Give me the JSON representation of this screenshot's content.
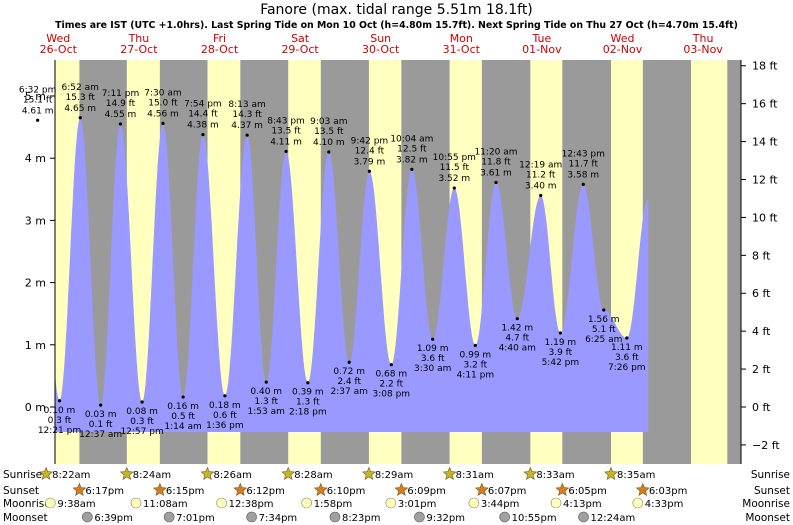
{
  "chart_data": {
    "type": "area",
    "title": "Fanore (max. tidal range 5.51m 18.1ft)",
    "subtitle": "Times are IST (UTC +1.0hrs). Last Spring Tide on Mon 10 Oct (h=4.80m 15.7ft). Next Spring Tide on Thu 27 Oct (h=4.70m 15.4ft)",
    "xlim": [
      0,
      8.3
    ],
    "ylim": [
      -0.62,
      5.76
    ],
    "y_left_ticks": [
      {
        "v": 0,
        "label": "0 m"
      },
      {
        "v": 1,
        "label": "1 m"
      },
      {
        "v": 2,
        "label": "2 m"
      },
      {
        "v": 3,
        "label": "3 m"
      },
      {
        "v": 4,
        "label": "4 m"
      },
      {
        "v": 5,
        "label": "5 m"
      }
    ],
    "y_right_ticks": [
      {
        "v": -0.6096,
        "label": "−2 ft"
      },
      {
        "v": 0,
        "label": "0 ft"
      },
      {
        "v": 0.6096,
        "label": "2 ft"
      },
      {
        "v": 1.2192,
        "label": "4 ft"
      },
      {
        "v": 1.8288,
        "label": "6 ft"
      },
      {
        "v": 2.4384,
        "label": "8 ft"
      },
      {
        "v": 3.048,
        "label": "10 ft"
      },
      {
        "v": 3.6576,
        "label": "12 ft"
      },
      {
        "v": 4.2672,
        "label": "14 ft"
      },
      {
        "v": 4.8768,
        "label": "16 ft"
      },
      {
        "v": 5.4864,
        "label": "18 ft"
      }
    ],
    "days": [
      {
        "dow": "Wed",
        "date": "26-Oct",
        "rise": 0.3486,
        "set": 0.7618
      },
      {
        "dow": "Thu",
        "date": "27-Oct",
        "rise": 1.35,
        "set": 1.7604
      },
      {
        "dow": "Fri",
        "date": "28-Oct",
        "rise": 2.3514,
        "set": 2.7583
      },
      {
        "dow": "Sat",
        "date": "29-Oct",
        "rise": 3.3528,
        "set": 3.7569
      },
      {
        "dow": "Sun",
        "date": "30-Oct",
        "rise": 4.3535,
        "set": 4.7563
      },
      {
        "dow": "Mon",
        "date": "31-Oct",
        "rise": 5.3549,
        "set": 5.7549
      },
      {
        "dow": "Tue",
        "date": "01-Nov",
        "rise": 6.3563,
        "set": 6.7535
      },
      {
        "dow": "Wed",
        "date": "02-Nov",
        "rise": 7.3576,
        "set": 7.7521
      },
      {
        "dow": "Thu",
        "date": "03-Nov",
        "rise": 8.35,
        "set": 8.8
      }
    ],
    "tides": [
      {
        "t": 0.2438,
        "h": 4.61,
        "kind": "high",
        "time": "6:32 pm",
        "ft": "15.1 ft",
        "m": "4.61 m"
      },
      {
        "t": 0.5146,
        "h": 0.1,
        "kind": "low",
        "time": "12:21 pm",
        "ft": "0.3 ft",
        "m": "0.10 m"
      },
      {
        "t": 0.7722,
        "h": 4.65,
        "kind": "high",
        "time": "6:52 am",
        "ft": "15.3 ft",
        "m": "4.65 m"
      },
      {
        "t": 1.0257,
        "h": 0.03,
        "kind": "low",
        "time": "12:37 am",
        "ft": "0.1 ft",
        "m": "0.03 m"
      },
      {
        "t": 1.2715,
        "h": 4.55,
        "kind": "high",
        "time": "7:11 pm",
        "ft": "14.9 ft",
        "m": "4.55 m"
      },
      {
        "t": 1.5396,
        "h": 0.08,
        "kind": "low",
        "time": "12:57 pm",
        "ft": "0.3 ft",
        "m": "0.08 m"
      },
      {
        "t": 1.7986,
        "h": 4.56,
        "kind": "high",
        "time": "7:30 am",
        "ft": "15.0 ft",
        "m": "4.56 m"
      },
      {
        "t": 2.0486,
        "h": 0.16,
        "kind": "low",
        "time": "1:14 am",
        "ft": "0.5 ft",
        "m": "0.16 m"
      },
      {
        "t": 2.2944,
        "h": 4.38,
        "kind": "high",
        "time": "7:54 pm",
        "ft": "14.4 ft",
        "m": "4.38 m"
      },
      {
        "t": 2.5667,
        "h": 0.18,
        "kind": "low",
        "time": "1:36 pm",
        "ft": "0.6 ft",
        "m": "0.18 m"
      },
      {
        "t": 2.8424,
        "h": 4.37,
        "kind": "high",
        "time": "8:13 am",
        "ft": "14.3 ft",
        "m": "4.37 m"
      },
      {
        "t": 3.0799,
        "h": 0.4,
        "kind": "low",
        "time": "1:53 am",
        "ft": "1.3 ft",
        "m": "0.40 m"
      },
      {
        "t": 3.3257,
        "h": 4.11,
        "kind": "high",
        "time": "8:43 pm",
        "ft": "13.5 ft",
        "m": "4.11 m"
      },
      {
        "t": 3.5958,
        "h": 0.39,
        "kind": "low",
        "time": "2:18 pm",
        "ft": "1.3 ft",
        "m": "0.39 m"
      },
      {
        "t": 3.8563,
        "h": 4.1,
        "kind": "high",
        "time": "9:03 am",
        "ft": "13.5 ft",
        "m": "4.10 m"
      },
      {
        "t": 4.109,
        "h": 0.72,
        "kind": "low",
        "time": "2:37 am",
        "ft": "2.4 ft",
        "m": "0.72 m"
      },
      {
        "t": 4.3599,
        "h": 3.79,
        "kind": "high",
        "time": "9:42 pm",
        "ft": "12.4 ft",
        "m": "3.79 m"
      },
      {
        "t": 4.6313,
        "h": 0.68,
        "kind": "low",
        "time": "3:08 pm",
        "ft": "2.2 ft",
        "m": "0.68 m"
      },
      {
        "t": 4.8868,
        "h": 3.82,
        "kind": "high",
        "time": "10:04 am",
        "ft": "12.5 ft",
        "m": "3.82 m"
      },
      {
        "t": 5.1451,
        "h": 1.09,
        "kind": "low",
        "time": "3:30 am",
        "ft": "3.6 ft",
        "m": "1.09 m"
      },
      {
        "t": 5.4132,
        "h": 3.52,
        "kind": "high",
        "time": "10:55 pm",
        "ft": "11.5 ft",
        "m": "3.52 m"
      },
      {
        "t": 5.6743,
        "h": 0.99,
        "kind": "low",
        "time": "4:11 pm",
        "ft": "3.2 ft",
        "m": "0.99 m"
      },
      {
        "t": 5.9306,
        "h": 3.61,
        "kind": "high",
        "time": "11:20 am",
        "ft": "11.8 ft",
        "m": "3.61 m"
      },
      {
        "t": 6.1944,
        "h": 1.42,
        "kind": "low",
        "time": "4:40 am",
        "ft": "4.7 ft",
        "m": "1.42 m"
      },
      {
        "t": 6.4854,
        "h": 3.4,
        "kind": "high",
        "time": "12:19 am",
        "ft": "11.2 ft",
        "m": "3.40 m"
      },
      {
        "t": 6.7292,
        "h": 1.19,
        "kind": "low",
        "time": "5:42 pm",
        "ft": "3.9 ft",
        "m": "1.19 m"
      },
      {
        "t": 7.0132,
        "h": 3.58,
        "kind": "high",
        "time": "12:43 pm",
        "ft": "11.7 ft",
        "m": "3.58 m"
      },
      {
        "t": 7.2674,
        "h": 1.56,
        "kind": "low",
        "time": "6:25 am",
        "ft": "5.1 ft",
        "m": "1.56 m"
      },
      {
        "t": 7.5535,
        "h": 1.11,
        "kind": "low",
        "time": "7:26 pm",
        "ft": "3.6 ft",
        "m": "1.11 m"
      }
    ],
    "tide_curve": {
      "start": {
        "t": -0.08,
        "h": 1.0
      },
      "pre_first_low": {
        "t": 0.005,
        "h": 0.12
      },
      "end": {
        "t": 7.82,
        "h": 3.35
      }
    }
  },
  "sun_moon": {
    "labels": {
      "sunrise": "Sunrise",
      "sunset": "Sunset",
      "moonrise": "Moonrise",
      "moonset": "Moonset"
    },
    "sunrise": [
      {
        "t": 0.3486,
        "text": "8:22am"
      },
      {
        "t": 1.35,
        "text": "8:24am"
      },
      {
        "t": 2.3514,
        "text": "8:26am"
      },
      {
        "t": 3.3528,
        "text": "8:28am"
      },
      {
        "t": 4.3535,
        "text": "8:29am"
      },
      {
        "t": 5.3549,
        "text": "8:31am"
      },
      {
        "t": 6.3563,
        "text": "8:33am"
      },
      {
        "t": 7.3576,
        "text": "8:35am"
      }
    ],
    "sunset": [
      {
        "t": 0.7618,
        "text": "6:17pm"
      },
      {
        "t": 1.7604,
        "text": "6:15pm"
      },
      {
        "t": 2.7583,
        "text": "6:12pm"
      },
      {
        "t": 3.7569,
        "text": "6:10pm"
      },
      {
        "t": 4.7563,
        "text": "6:09pm"
      },
      {
        "t": 5.7549,
        "text": "6:07pm"
      },
      {
        "t": 6.7535,
        "text": "6:05pm"
      },
      {
        "t": 7.7521,
        "text": "6:03pm"
      }
    ],
    "moonrise": [
      {
        "t": 0.4014,
        "text": "9:38am"
      },
      {
        "t": 1.4639,
        "text": "11:08am"
      },
      {
        "t": 2.5264,
        "text": "12:38pm"
      },
      {
        "t": 3.5819,
        "text": "1:58pm"
      },
      {
        "t": 4.6257,
        "text": "3:01pm"
      },
      {
        "t": 5.6556,
        "text": "3:44pm"
      },
      {
        "t": 6.6757,
        "text": "4:13pm"
      },
      {
        "t": 7.6896,
        "text": "4:33pm"
      }
    ],
    "moonset": [
      {
        "t": 0.8604,
        "text": "6:39pm"
      },
      {
        "t": 1.8757,
        "text": "7:01pm"
      },
      {
        "t": 2.8986,
        "text": "7:34pm"
      },
      {
        "t": 3.9326,
        "text": "8:23pm"
      },
      {
        "t": 4.9806,
        "text": "9:32pm"
      },
      {
        "t": 6.0382,
        "text": "10:55pm"
      },
      {
        "t": 7.0167,
        "text": "12:24am"
      }
    ]
  },
  "colors": {
    "night": "#9a9a9a",
    "day": "#ffffc0",
    "water": "#9999ff",
    "text": "#000000",
    "date": "#cc0000",
    "sunrise_star": "#c8b428",
    "sunset_star": "#e07820",
    "moonrise_disc": "#ffffbb",
    "moonset_disc": "#a0a0a0"
  }
}
